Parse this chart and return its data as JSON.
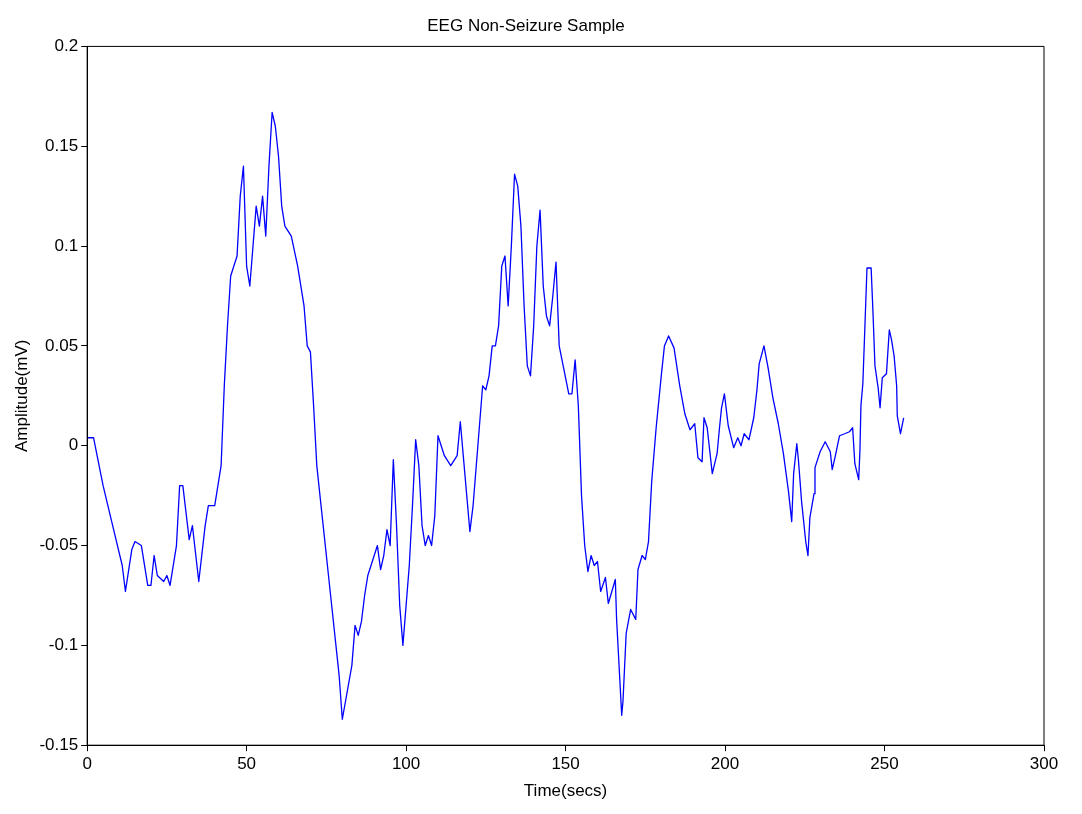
{
  "chart_data": {
    "type": "line",
    "title": "EEG Non-Seizure Sample",
    "xlabel": "Time(secs)",
    "ylabel": "Amplitude(mV)",
    "xlim": [
      0,
      300
    ],
    "xticks": [
      0,
      50,
      100,
      150,
      200,
      250,
      300
    ],
    "ylim": [
      -0.15,
      0.2
    ],
    "yticks": [
      -0.15,
      -0.1,
      -0.05,
      0,
      0.05,
      0.1,
      0.15,
      0.2
    ],
    "grid": false,
    "legend": false,
    "marker": "none",
    "line_style": "solid",
    "series": [
      {
        "color": "#0000ff",
        "x": [
          0,
          2,
          5,
          8,
          11,
          12,
          14,
          15,
          17,
          19,
          20,
          21,
          22,
          24,
          25,
          26,
          28,
          29,
          30,
          32,
          33,
          35,
          37,
          38,
          40,
          42,
          43,
          44,
          45,
          46,
          47,
          48,
          49,
          50,
          51,
          52,
          53,
          54,
          55,
          56,
          57,
          58,
          59,
          60,
          61,
          62,
          64,
          66,
          68,
          69,
          70,
          71,
          72,
          74,
          76,
          78,
          79,
          80,
          83,
          84,
          85,
          86,
          87,
          88,
          90,
          91,
          92,
          93,
          94,
          95,
          96,
          97,
          98,
          99,
          101,
          102,
          103,
          104,
          105,
          106,
          107,
          108,
          109,
          110,
          112,
          114,
          116,
          117,
          120,
          121,
          122,
          123,
          124,
          125,
          126,
          127,
          128,
          129,
          130,
          131,
          132,
          133,
          134,
          135,
          136,
          137,
          138,
          139,
          140,
          141,
          142,
          143,
          144,
          145,
          146,
          147,
          148,
          151,
          152,
          153,
          154,
          155,
          156,
          157,
          158,
          159,
          160,
          161,
          162.5,
          163.4,
          165.6,
          166,
          167.6,
          168,
          169,
          170.4,
          172,
          172.7,
          174,
          175,
          176,
          177,
          178.4,
          180,
          181,
          182.3,
          184,
          185.8,
          187.4,
          189,
          190.5,
          191.5,
          192.8,
          193.4,
          194.4,
          196,
          197.5,
          198.2,
          198.9,
          199.8,
          201,
          202.7,
          204,
          205,
          206,
          207.5,
          209,
          210,
          210.7,
          212.2,
          213.5,
          215,
          216.7,
          218.3,
          219.9,
          220.9,
          221.5,
          222.5,
          223,
          224,
          225.3,
          226,
          226.6,
          227.9,
          228.2,
          229.8,
          231.4,
          233,
          233.6,
          234.6,
          235.9,
          237.5,
          239,
          240,
          240.7,
          241.9,
          242.3,
          242.6,
          243.2,
          243.9,
          244.5,
          245.8,
          246.4,
          247,
          248,
          248.6,
          249.3,
          250.6,
          251.5,
          252.2,
          253,
          253.8,
          254,
          255,
          256
        ],
        "values": [
          0.004,
          0.004,
          -0.02,
          -0.04,
          -0.06,
          -0.073,
          -0.052,
          -0.048,
          -0.05,
          -0.07,
          -0.07,
          -0.055,
          -0.065,
          -0.068,
          -0.065,
          -0.07,
          -0.05,
          -0.02,
          -0.02,
          -0.047,
          -0.04,
          -0.068,
          -0.04,
          -0.03,
          -0.03,
          -0.01,
          0.03,
          0.06,
          0.085,
          0.09,
          0.095,
          0.125,
          0.14,
          0.09,
          0.08,
          0.1,
          0.12,
          0.11,
          0.125,
          0.105,
          0.14,
          0.167,
          0.16,
          0.145,
          0.12,
          0.11,
          0.105,
          0.09,
          0.07,
          0.05,
          0.047,
          0.02,
          -0.01,
          -0.04,
          -0.07,
          -0.1,
          -0.115,
          -0.137,
          -0.11,
          -0.09,
          -0.095,
          -0.088,
          -0.075,
          -0.065,
          -0.055,
          -0.05,
          -0.062,
          -0.055,
          -0.042,
          -0.05,
          -0.007,
          -0.04,
          -0.08,
          -0.1,
          -0.06,
          -0.03,
          0.003,
          -0.01,
          -0.04,
          -0.05,
          -0.045,
          -0.05,
          -0.035,
          0.005,
          -0.005,
          -0.01,
          -0.005,
          0.012,
          -0.043,
          -0.03,
          -0.01,
          0.01,
          0.03,
          0.028,
          0.035,
          0.05,
          0.05,
          0.06,
          0.09,
          0.095,
          0.07,
          0.1,
          0.136,
          0.13,
          0.11,
          0.07,
          0.04,
          0.035,
          0.06,
          0.1,
          0.118,
          0.08,
          0.065,
          0.06,
          0.075,
          0.092,
          0.05,
          0.026,
          0.026,
          0.043,
          0.02,
          -0.025,
          -0.05,
          -0.063,
          -0.055,
          -0.06,
          -0.058,
          -0.073,
          -0.066,
          -0.079,
          -0.067,
          -0.087,
          -0.135,
          -0.128,
          -0.094,
          -0.082,
          -0.087,
          -0.062,
          -0.055,
          -0.057,
          -0.048,
          -0.018,
          0.009,
          0.035,
          0.05,
          0.055,
          0.049,
          0.03,
          0.016,
          0.008,
          0.011,
          -0.006,
          -0.008,
          0.014,
          0.009,
          -0.014,
          -0.004,
          0.008,
          0.019,
          0.026,
          0.01,
          -0.001,
          0.004,
          0,
          0.006,
          0.003,
          0.014,
          0.028,
          0.041,
          0.05,
          0.039,
          0.024,
          0.011,
          -0.004,
          -0.023,
          -0.038,
          -0.014,
          0.001,
          -0.007,
          -0.028,
          -0.048,
          -0.055,
          -0.036,
          -0.024,
          -0.011,
          -0.003,
          0.002,
          -0.003,
          -0.012,
          -0.005,
          0.005,
          0.006,
          0.007,
          0.009,
          -0.009,
          -0.017,
          -0.002,
          0.02,
          0.031,
          0.062,
          0.089,
          0.089,
          0.066,
          0.04,
          0.029,
          0.019,
          0.034,
          0.036,
          0.058,
          0.053,
          0.045,
          0.03,
          0.015,
          0.006,
          0.014
        ]
      }
    ]
  }
}
